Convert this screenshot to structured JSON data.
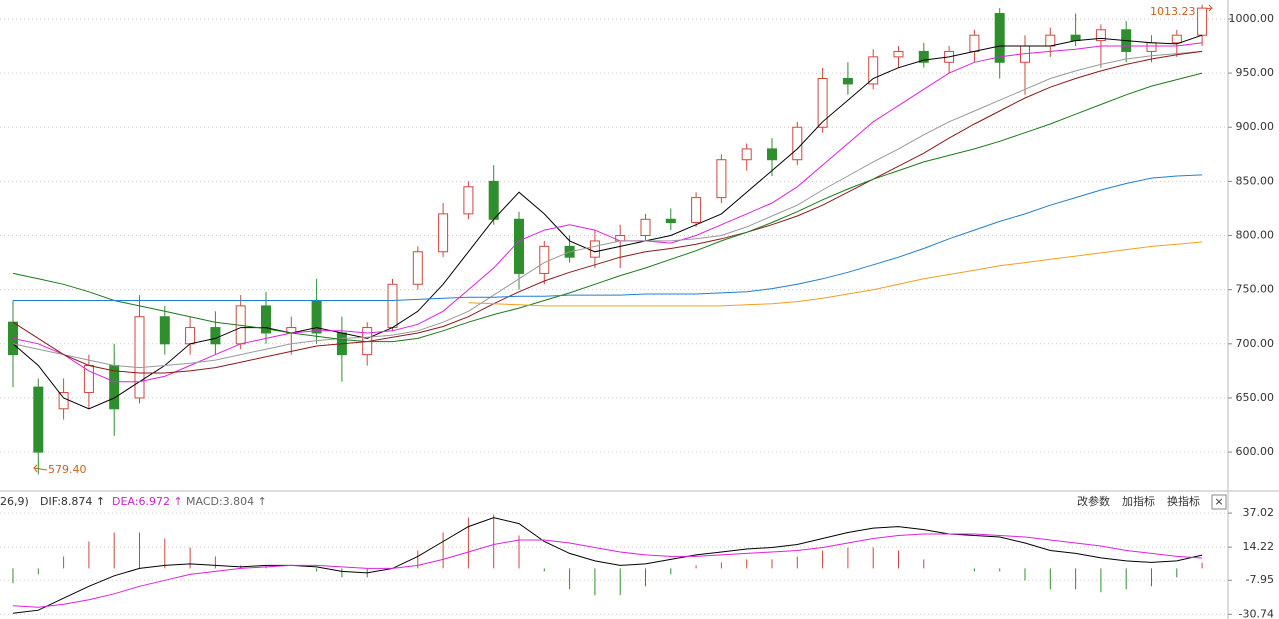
{
  "chart_data": [
    {
      "type": "candlestick",
      "open": [
        720,
        660,
        640,
        655,
        680,
        650,
        725,
        700,
        715,
        700,
        735,
        710,
        740,
        710,
        690,
        715,
        755,
        785,
        820,
        850,
        815,
        765,
        790,
        780,
        795,
        800,
        815,
        812,
        835,
        870,
        880,
        870,
        900,
        945,
        940,
        965,
        970,
        960,
        970,
        1005,
        960,
        975,
        985,
        980,
        990,
        970,
        978,
        985
      ],
      "high": [
        740,
        668,
        668,
        690,
        700,
        745,
        735,
        725,
        730,
        745,
        748,
        725,
        760,
        725,
        720,
        760,
        790,
        830,
        850,
        865,
        822,
        795,
        800,
        805,
        810,
        820,
        825,
        840,
        875,
        885,
        890,
        905,
        955,
        960,
        972,
        975,
        978,
        975,
        990,
        1010,
        985,
        992,
        1005,
        995,
        998,
        985,
        990,
        1013.23
      ],
      "low": [
        660,
        579.4,
        630,
        640,
        615,
        645,
        690,
        690,
        690,
        695,
        700,
        690,
        700,
        665,
        680,
        712,
        750,
        780,
        815,
        810,
        750,
        755,
        775,
        770,
        770,
        795,
        805,
        808,
        830,
        860,
        855,
        865,
        895,
        930,
        935,
        955,
        955,
        950,
        960,
        945,
        930,
        965,
        975,
        955,
        960,
        960,
        965,
        975
      ],
      "close": [
        690,
        600,
        655,
        680,
        640,
        725,
        700,
        715,
        700,
        735,
        710,
        715,
        710,
        690,
        715,
        755,
        785,
        820,
        845,
        815,
        765,
        790,
        780,
        795,
        800,
        815,
        812,
        835,
        870,
        880,
        870,
        900,
        945,
        940,
        965,
        970,
        960,
        970,
        985,
        960,
        975,
        985,
        980,
        990,
        970,
        978,
        985,
        1010
      ],
      "up_color": "#d0473f",
      "down_color": "#2f8f2f",
      "series": [
        {
          "color": "#000000",
          "values": [
            700,
            680,
            650,
            640,
            650,
            665,
            680,
            700,
            705,
            715,
            715,
            710,
            715,
            710,
            705,
            715,
            730,
            755,
            785,
            815,
            840,
            820,
            795,
            785,
            790,
            795,
            800,
            810,
            820,
            840,
            860,
            880,
            905,
            925,
            945,
            955,
            962,
            965,
            970,
            975,
            975,
            975,
            980,
            982,
            980,
            978,
            977,
            985
          ]
        },
        {
          "color": "#e020e0",
          "values": [
            705,
            700,
            690,
            675,
            665,
            665,
            670,
            680,
            690,
            700,
            705,
            710,
            712,
            712,
            710,
            712,
            718,
            730,
            750,
            770,
            795,
            805,
            810,
            805,
            795,
            795,
            793,
            800,
            810,
            820,
            830,
            845,
            865,
            885,
            905,
            920,
            935,
            950,
            960,
            965,
            968,
            970,
            972,
            975,
            975,
            975,
            975,
            978
          ]
        },
        {
          "color": "#999999",
          "values": [
            700,
            695,
            690,
            685,
            680,
            678,
            680,
            682,
            685,
            690,
            695,
            700,
            703,
            705,
            706,
            708,
            712,
            720,
            730,
            745,
            760,
            775,
            785,
            790,
            795,
            795,
            795,
            797,
            800,
            808,
            818,
            828,
            842,
            855,
            868,
            880,
            893,
            905,
            915,
            925,
            935,
            945,
            952,
            958,
            963,
            966,
            968,
            970
          ]
        },
        {
          "color": "#8b1a1a",
          "values": [
            720,
            705,
            690,
            680,
            675,
            673,
            673,
            675,
            678,
            683,
            688,
            693,
            698,
            700,
            702,
            706,
            710,
            716,
            725,
            737,
            748,
            758,
            766,
            773,
            780,
            785,
            788,
            792,
            797,
            803,
            810,
            818,
            828,
            840,
            852,
            864,
            876,
            890,
            903,
            915,
            927,
            937,
            945,
            952,
            958,
            963,
            967,
            970
          ]
        },
        {
          "color": "#1a7a1a",
          "values": [
            765,
            760,
            755,
            748,
            740,
            735,
            730,
            725,
            720,
            717,
            714,
            710,
            707,
            704,
            702,
            702,
            705,
            712,
            720,
            727,
            733,
            740,
            747,
            755,
            763,
            770,
            778,
            786,
            795,
            803,
            812,
            822,
            833,
            843,
            852,
            860,
            868,
            874,
            880,
            887,
            895,
            903,
            912,
            921,
            930,
            938,
            944,
            950
          ]
        },
        {
          "color": "#1f7fd0",
          "values": [
            740,
            740,
            740,
            740,
            740,
            740,
            740,
            740,
            740,
            740,
            740,
            740,
            740,
            740,
            740,
            740,
            741,
            742,
            743,
            743,
            744,
            744,
            745,
            745,
            745,
            746,
            746,
            746,
            747,
            748,
            751,
            755,
            760,
            766,
            773,
            780,
            788,
            797,
            805,
            813,
            820,
            828,
            835,
            842,
            848,
            853,
            855,
            856
          ]
        },
        {
          "color": "#f0a020",
          "values": [
            null,
            null,
            null,
            null,
            null,
            null,
            null,
            null,
            null,
            null,
            null,
            null,
            null,
            null,
            null,
            null,
            null,
            null,
            738,
            737,
            736,
            735,
            735,
            735,
            735,
            735,
            735,
            735,
            735,
            736,
            737,
            739,
            742,
            746,
            750,
            755,
            760,
            764,
            768,
            772,
            775,
            778,
            781,
            784,
            787,
            790,
            792,
            794
          ]
        }
      ],
      "ylim": [
        565,
        1017.5
      ],
      "yticks": [
        {
          "value": 600,
          "label": "600.00"
        },
        {
          "value": 650,
          "label": "650.00"
        },
        {
          "value": 700,
          "label": "700.00"
        },
        {
          "value": 750,
          "label": "750.00"
        },
        {
          "value": 800,
          "label": "800.00"
        },
        {
          "value": 850,
          "label": "850.00"
        },
        {
          "value": 900,
          "label": "900.00"
        },
        {
          "value": 950,
          "label": "950.00"
        },
        {
          "value": 1000,
          "label": "1000.00"
        }
      ],
      "grid": true,
      "annotations": {
        "high": "1013.23",
        "low": "579.40"
      }
    },
    {
      "type": "macd",
      "header": {
        "params": "26,9)",
        "dif": "DIF:8.874 ↑",
        "dea": "DEA:6.972 ↑",
        "macd": "MACD:3.804 ↑"
      },
      "buttons": [
        "改参数",
        "加指标",
        "换指标"
      ],
      "close_button": "×",
      "series": [
        {
          "color": "#000000",
          "values": [
            -30,
            -28,
            -20,
            -12,
            -5,
            0,
            2,
            3,
            2,
            1,
            2,
            2,
            1,
            -2,
            -3,
            0,
            8,
            18,
            28,
            34,
            30,
            18,
            10,
            5,
            2,
            3,
            6,
            9,
            11,
            13,
            14,
            16,
            20,
            24,
            27,
            28,
            26,
            23,
            22,
            21,
            17,
            12,
            10,
            7,
            5,
            4,
            5,
            8.874
          ]
        },
        {
          "color": "#e020e0",
          "values": [
            -25,
            -26,
            -24,
            -21,
            -17,
            -12,
            -8,
            -4,
            -2,
            0,
            1,
            2,
            2,
            1,
            0,
            0,
            2,
            6,
            11,
            16,
            19,
            19,
            17,
            14,
            11,
            9,
            8,
            8,
            9,
            10,
            11,
            12,
            14,
            17,
            20,
            22,
            23,
            23,
            23,
            22,
            21,
            19,
            17,
            15,
            12,
            10,
            8,
            6.972
          ]
        }
      ],
      "bars": {
        "values": [
          -10,
          -4,
          8,
          18,
          24,
          24,
          20,
          14,
          8,
          2,
          2,
          0,
          -2,
          -6,
          -6,
          0,
          12,
          24,
          34,
          36,
          22,
          -2,
          -14,
          -18,
          -18,
          -12,
          -4,
          2,
          4,
          6,
          6,
          8,
          12,
          14,
          14,
          12,
          6,
          0,
          -2,
          -2,
          -8,
          -14,
          -14,
          -16,
          -14,
          -12,
          -6,
          3.804
        ],
        "up_color": "#d0473f",
        "down_color": "#2f8f2f"
      },
      "ylim": [
        -33.9,
        47.8
      ],
      "yticks": [
        -30.74,
        -7.95,
        14.22,
        37.02
      ],
      "grid": true
    }
  ]
}
